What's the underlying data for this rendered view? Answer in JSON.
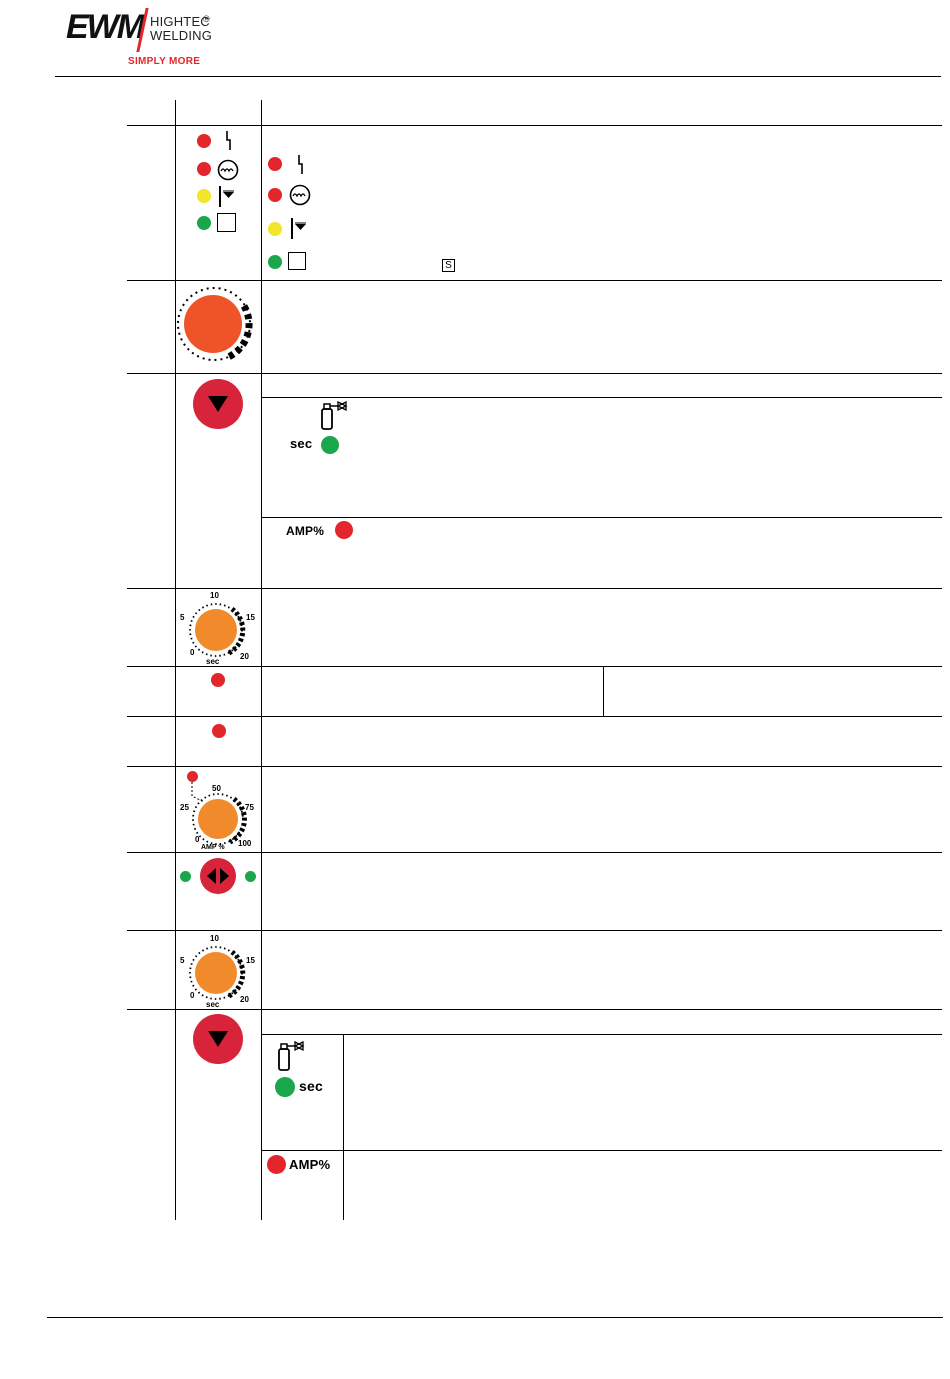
{
  "header": {
    "logo_main": "EWM",
    "logo_line1": "HIGHTEC",
    "logo_reg": "®",
    "logo_line2": "WELDING",
    "logo_tagline": "SIMPLY MORE"
  },
  "rows": {
    "signal_lights": {
      "symbol_s": "S",
      "leds": [
        {
          "color": "red",
          "icon": "collective-fault-icon"
        },
        {
          "color": "red",
          "icon": "water-shortage-icon"
        },
        {
          "color": "yellow",
          "icon": "overtemperature-icon"
        },
        {
          "color": "green",
          "icon": "ready-square-icon"
        }
      ]
    },
    "gas_pre_flow": {
      "unit": "sec"
    },
    "gas_pre_flow_alt": {
      "unit": "AMP%"
    },
    "dial_sec_1": {
      "ticks": [
        "10",
        "5",
        "15",
        "0",
        "20"
      ],
      "unit": "sec"
    },
    "dial_amp": {
      "ticks": [
        "50",
        "25",
        "75",
        "0",
        "100"
      ],
      "unit": "AMP %"
    },
    "dial_sec_2": {
      "ticks": [
        "10",
        "5",
        "15",
        "0",
        "20"
      ],
      "unit": "sec"
    },
    "gas_post_flow": {
      "unit": "sec"
    },
    "gas_post_flow_alt": {
      "unit": "AMP%"
    }
  },
  "colors": {
    "led_red": "#e3262b",
    "led_green": "#1aa64a",
    "led_yellow": "#f2e52a",
    "knob_red": "#d8243a",
    "dial_orange": "#f18a2a",
    "dial_big": "#ef5428"
  }
}
